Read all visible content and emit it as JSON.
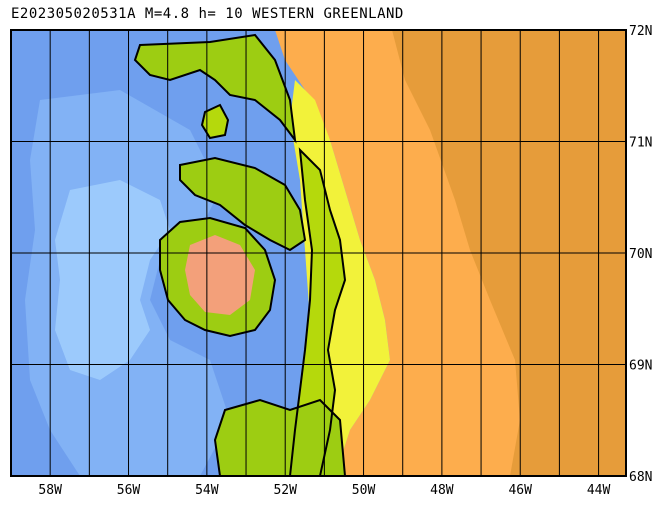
{
  "title": "E202305020531A M=4.8 h= 10 WESTERN GREENLAND",
  "map": {
    "lon_range": [
      -59.0,
      -43.3
    ],
    "lat_range": [
      68.0,
      72.0
    ],
    "lon_ticks": [
      "58W",
      "56W",
      "54W",
      "52W",
      "50W",
      "48W",
      "46W",
      "44W"
    ],
    "lat_ticks": [
      "72N",
      "71N",
      "70N",
      "69N",
      "68N"
    ],
    "colors": {
      "deep_ocean": "#6f9fee",
      "mid_ocean": "#82b2f5",
      "shallow_ocean": "#9ccafc",
      "lowland": "#9dcd12",
      "green_mid": "#b5d90c",
      "yellow_land": "#f2f23a",
      "ice_sheet": "#fdad4d",
      "ice_high": "#e69c3a",
      "highland": "#f3a07a",
      "coastline": "#000000",
      "grid": "#000000"
    }
  }
}
